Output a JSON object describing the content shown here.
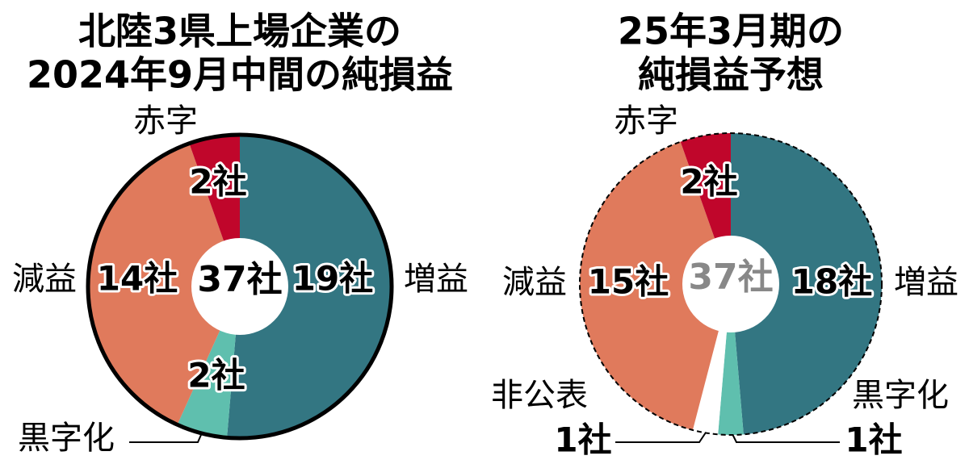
{
  "chart_data": [
    {
      "type": "pie",
      "title_lines": [
        "北陸3県上場企業の",
        "2024年9月中間の純損益"
      ],
      "categories": [
        "増益",
        "黒字化",
        "減益",
        "赤字"
      ],
      "values": [
        19,
        2,
        14,
        2
      ],
      "value_labels": [
        "19社",
        "2社",
        "14社",
        "2社"
      ],
      "colors": [
        "#337682",
        "#5fbfae",
        "#e07a5c",
        "#c0062b"
      ],
      "center_label": "37社",
      "center_text_color": "#000000",
      "outline": "solid"
    },
    {
      "type": "pie",
      "title_lines": [
        "25年3月期の",
        "純損益予想"
      ],
      "categories": [
        "増益",
        "黒字化",
        "非公表",
        "減益",
        "赤字"
      ],
      "values": [
        18,
        1,
        1,
        15,
        2
      ],
      "value_labels": [
        "18社",
        "1社",
        "1社",
        "15社",
        "2社"
      ],
      "colors": [
        "#337682",
        "#5fbfae",
        "#ffffff",
        "#e07a5c",
        "#c0062b"
      ],
      "center_label": "37社",
      "center_text_color": "#888888",
      "outline": "dashed"
    }
  ]
}
